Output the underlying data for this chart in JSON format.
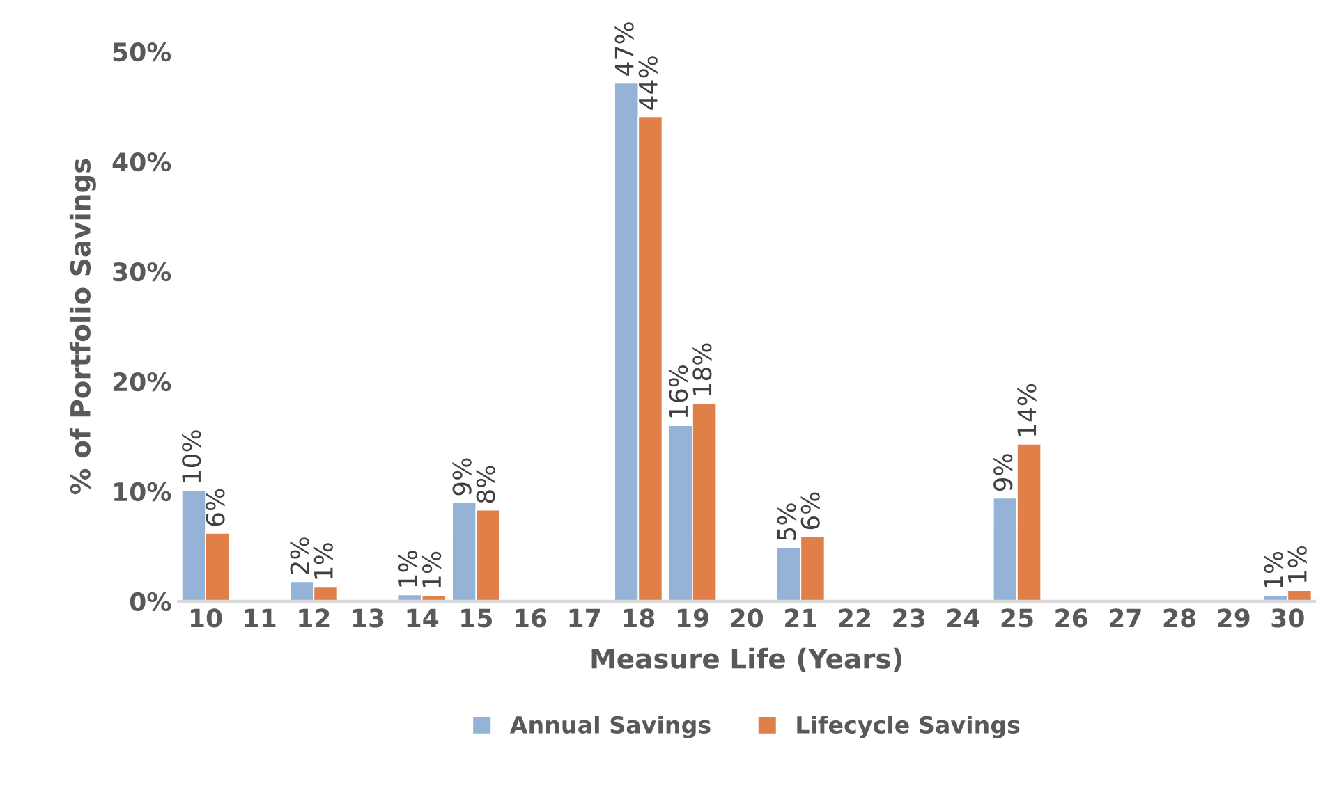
{
  "chart_data": {
    "type": "bar",
    "xlabel": "Measure Life (Years)",
    "ylabel": "% of Portfolio Savings",
    "categories": [
      "10",
      "11",
      "12",
      "13",
      "14",
      "15",
      "16",
      "17",
      "18",
      "19",
      "20",
      "21",
      "22",
      "23",
      "24",
      "25",
      "26",
      "27",
      "28",
      "29",
      "30"
    ],
    "series": [
      {
        "name": "Annual Savings",
        "color": "#95b3d7",
        "values": [
          10.1,
          null,
          1.8,
          null,
          0.6,
          9.0,
          null,
          null,
          47.2,
          16.0,
          null,
          4.9,
          null,
          null,
          null,
          9.4,
          null,
          null,
          null,
          null,
          0.5
        ],
        "value_labels": [
          "10%",
          null,
          "2%",
          null,
          "1%",
          "9%",
          null,
          null,
          "47%",
          "16%",
          null,
          "5%",
          null,
          null,
          null,
          "9%",
          null,
          null,
          null,
          null,
          "1%"
        ]
      },
      {
        "name": "Lifecycle Savings",
        "color": "#e07f47",
        "values": [
          6.2,
          null,
          1.3,
          null,
          0.5,
          8.3,
          null,
          null,
          44.1,
          18.0,
          null,
          5.9,
          null,
          null,
          null,
          14.3,
          null,
          null,
          null,
          null,
          1.0
        ],
        "value_labels": [
          "6%",
          null,
          "1%",
          null,
          "1%",
          "8%",
          null,
          null,
          "44%",
          "18%",
          null,
          "6%",
          null,
          null,
          null,
          "14%",
          null,
          null,
          null,
          null,
          "1%"
        ]
      }
    ],
    "ylim": [
      0,
      50
    ],
    "yticks": [
      {
        "value": 0,
        "label": "0%"
      },
      {
        "value": 10,
        "label": "10%"
      },
      {
        "value": 20,
        "label": "20%"
      },
      {
        "value": 30,
        "label": "30%"
      },
      {
        "value": 40,
        "label": "40%"
      },
      {
        "value": 50,
        "label": "50%"
      }
    ],
    "grid": false,
    "legend": "bottom"
  }
}
